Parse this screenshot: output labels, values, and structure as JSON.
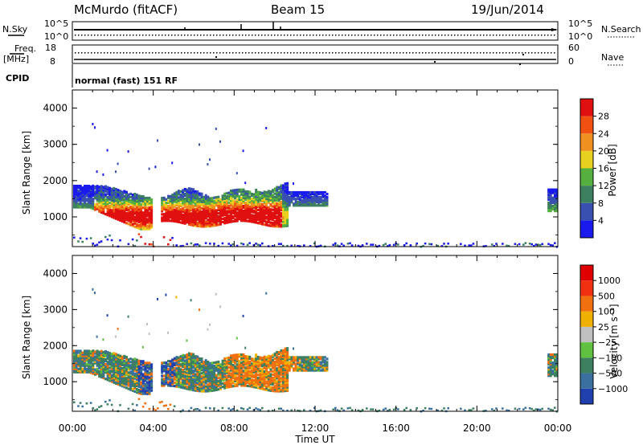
{
  "header": {
    "station": "McMurdo (fitACF)",
    "beam": "Beam 15",
    "date": "19/Jun/2014"
  },
  "strip": {
    "nsky_label": "N.Sky",
    "nsearch_label": "N.Search",
    "nsky_ticks": [
      "10^5",
      "10^0"
    ],
    "nsearch_ticks": [
      "10^5",
      "10^0"
    ],
    "freq_label_1": "Freq.",
    "freq_label_2": "[MHz]",
    "freq_ticks": [
      "18",
      "8"
    ],
    "nave_label": "Nave",
    "nave_ticks": [
      "60",
      "0"
    ],
    "cpid_label": "CPID",
    "cpid_value": "normal (fast) 151 RF"
  },
  "chart_data": [
    {
      "type": "heatmap",
      "name": "power",
      "ylabel": "Slant Range [km]",
      "y_ticks": [
        "1000",
        "2000",
        "3000",
        "4000"
      ],
      "ylim": [
        180,
        4500
      ],
      "x_ticks": [
        "00:00",
        "04:00",
        "08:00",
        "12:00",
        "16:00",
        "20:00",
        "00:00"
      ],
      "xlim": [
        0,
        24
      ],
      "colorbar": {
        "label": "Power [dB]",
        "ticks": [
          "4",
          "8",
          "12",
          "16",
          "20",
          "24",
          "28"
        ],
        "colors": [
          "#1a1aee",
          "#3a50b0",
          "#3d8060",
          "#55b040",
          "#e8d020",
          "#f09020",
          "#f05010",
          "#e01010"
        ]
      }
    },
    {
      "type": "heatmap",
      "name": "velocity",
      "ylabel": "Slant Range [km]",
      "y_ticks": [
        "1000",
        "2000",
        "3000",
        "4000"
      ],
      "ylim": [
        180,
        4500
      ],
      "x_ticks": [
        "00:00",
        "04:00",
        "08:00",
        "12:00",
        "16:00",
        "20:00",
        "00:00"
      ],
      "xlim": [
        0,
        24
      ],
      "xlabel": "Time UT",
      "colorbar": {
        "label": "Velocity [m s⁻¹]",
        "ticks": [
          "1000",
          "500",
          "100",
          "25",
          "−25",
          "−100",
          "−500",
          "−1000"
        ],
        "colors": [
          "#2040b0",
          "#3a70a0",
          "#3d8060",
          "#60c040",
          "#c0c0c0",
          "#f0b000",
          "#f07010",
          "#f03010",
          "#e00000"
        ]
      }
    }
  ]
}
